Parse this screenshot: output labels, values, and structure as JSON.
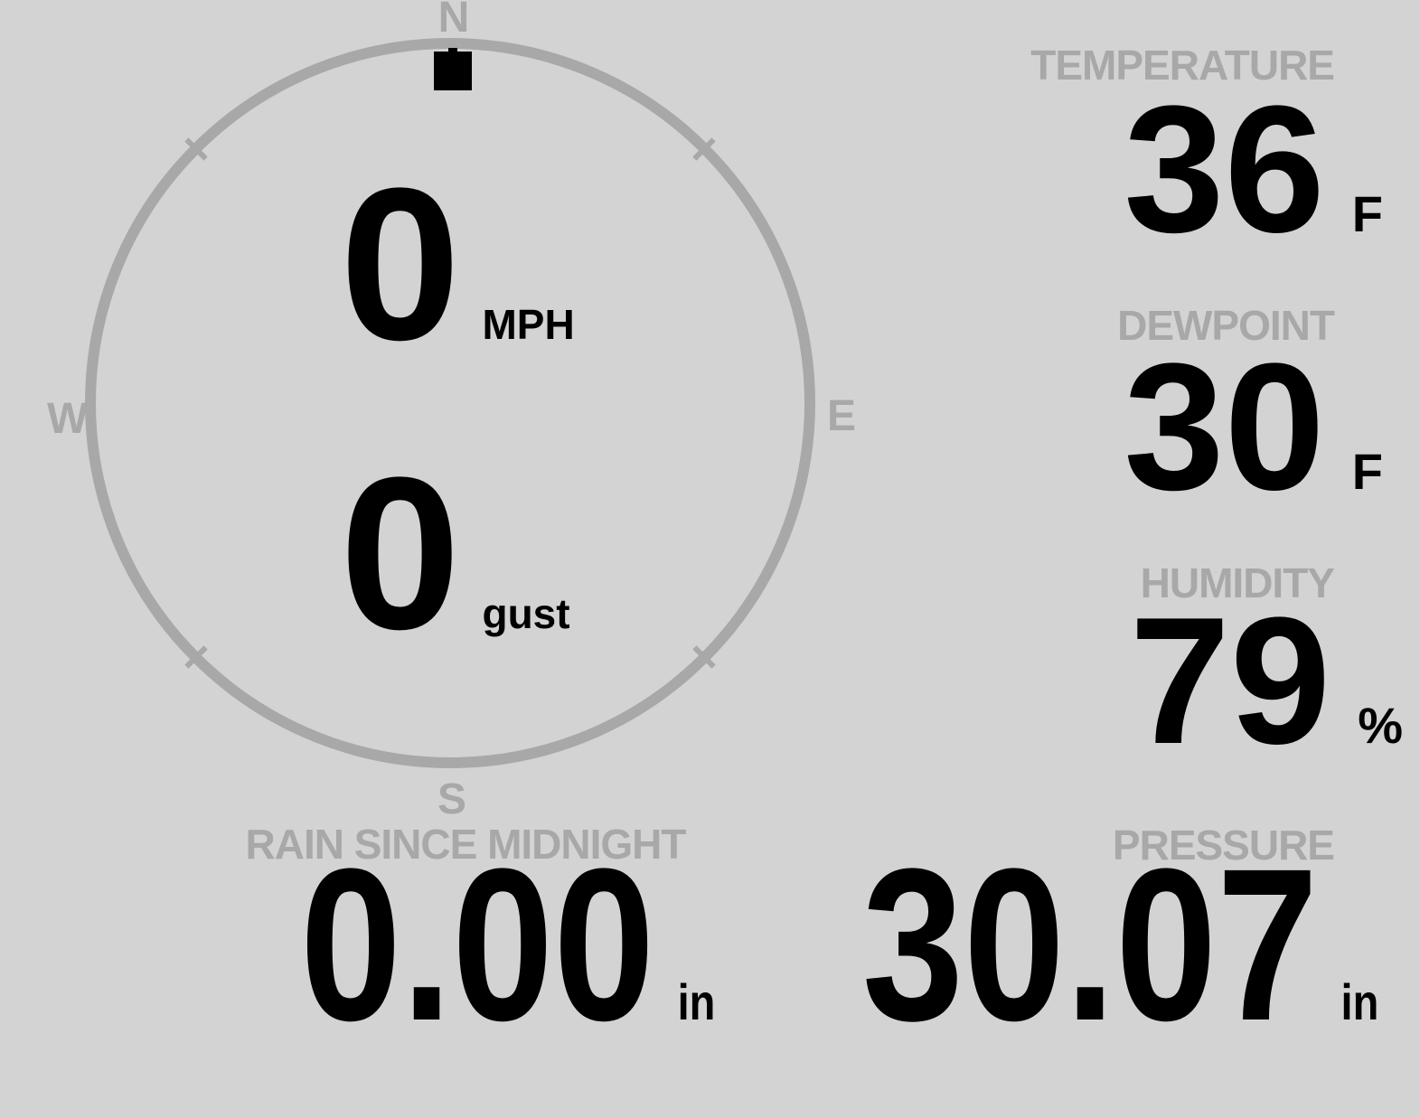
{
  "theme": {
    "background": "#d3d3d3",
    "muted": "#a8a8a8",
    "foreground": "#000000"
  },
  "wind": {
    "compass": {
      "north": "N",
      "east": "E",
      "south": "S",
      "west": "W"
    },
    "direction": "N",
    "speed": {
      "value": "0",
      "unit": "MPH"
    },
    "gust": {
      "value": "0",
      "unit": "gust"
    }
  },
  "metrics": {
    "temperature": {
      "label": "TEMPERATURE",
      "value": "36",
      "unit": "F"
    },
    "dewpoint": {
      "label": "DEWPOINT",
      "value": "30",
      "unit": "F"
    },
    "humidity": {
      "label": "HUMIDITY",
      "value": "79",
      "unit": "%"
    },
    "rain": {
      "label": "RAIN SINCE MIDNIGHT",
      "value": "0.00",
      "unit": "in"
    },
    "pressure": {
      "label": "PRESSURE",
      "value": "30.07",
      "unit": "in"
    }
  }
}
